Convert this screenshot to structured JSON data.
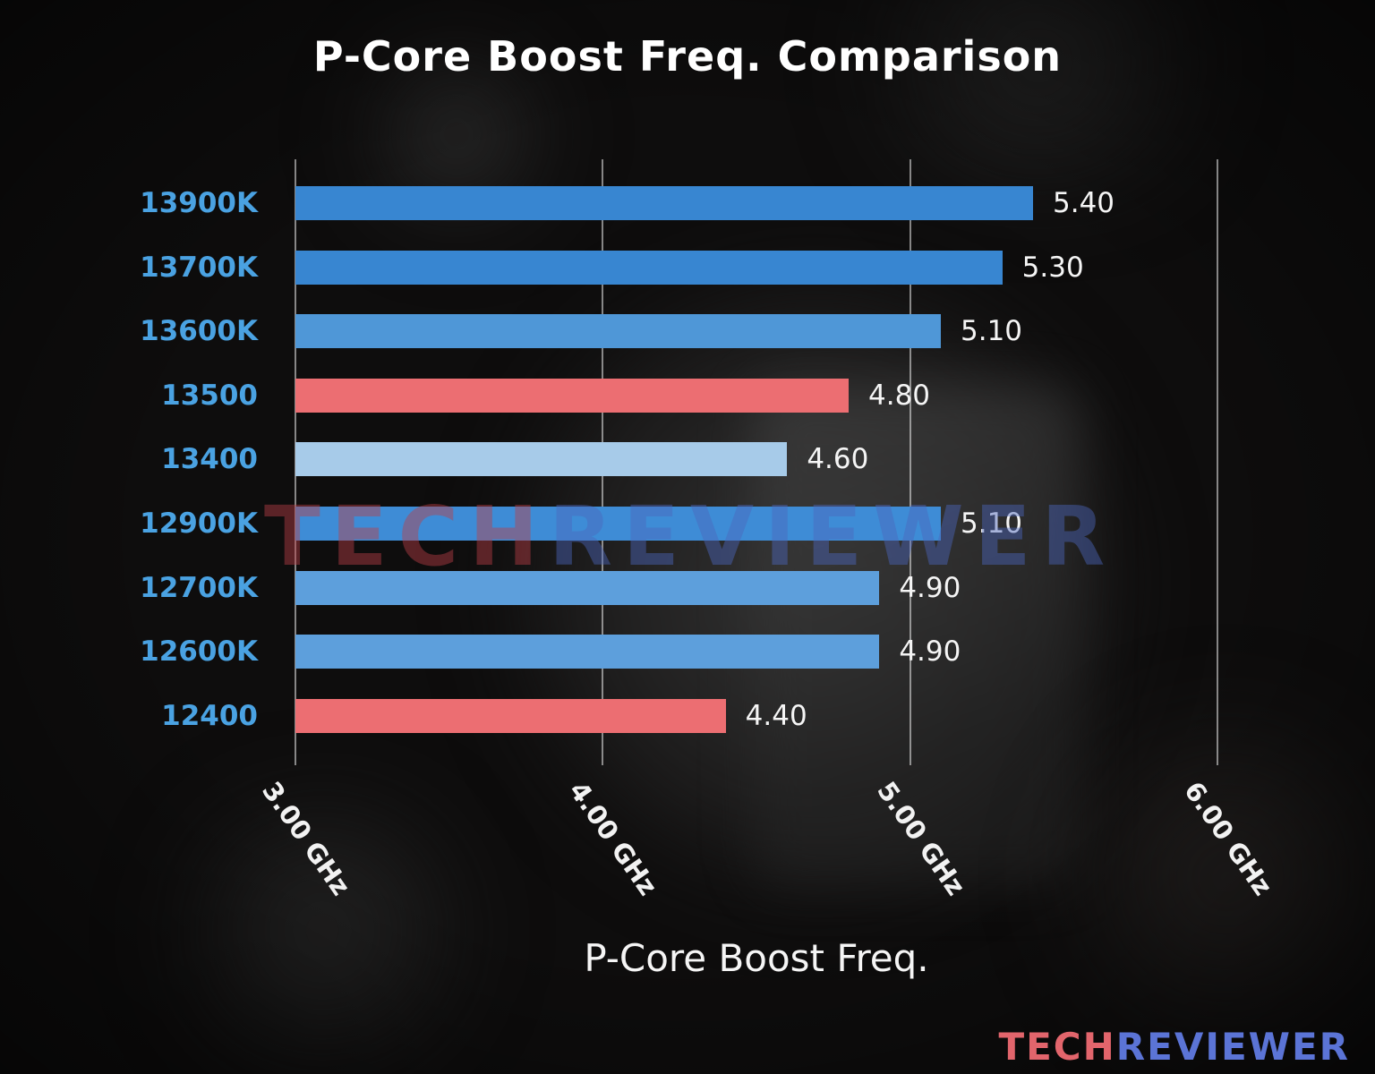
{
  "chart_data": {
    "type": "bar",
    "orientation": "horizontal",
    "title": "P-Core Boost Freq. Comparison",
    "xlabel": "P-Core Boost Freq.",
    "categories": [
      "13900K",
      "13700K",
      "13600K",
      "13500",
      "13400",
      "12900K",
      "12700K",
      "12600K",
      "12400"
    ],
    "values": [
      5.4,
      5.3,
      5.1,
      4.8,
      4.6,
      5.1,
      4.9,
      4.9,
      4.4
    ],
    "value_labels": [
      "5.40",
      "5.30",
      "5.10",
      "4.80",
      "4.60",
      "5.10",
      "4.90",
      "4.90",
      "4.40"
    ],
    "bar_colors": [
      "#3886d1",
      "#3886d1",
      "#4f97d7",
      "#ec6e72",
      "#a7cbe9",
      "#3e8cd6",
      "#5d9fdc",
      "#5d9fdc",
      "#ec6e72"
    ],
    "xlim": [
      3.0,
      6.0
    ],
    "xticks": [
      {
        "value": 3.0,
        "label": "3.00 GHz"
      },
      {
        "value": 4.0,
        "label": "4.00 GHz"
      },
      {
        "value": 5.0,
        "label": "5.00 GHz"
      },
      {
        "value": 6.0,
        "label": "6.00 GHz"
      }
    ],
    "grid": true,
    "category_color": "#4aa2e2",
    "value_label_color": "#f5f5f5",
    "tick_color": "#f2f2f2",
    "background_color": "#0e0d0d"
  },
  "watermark": {
    "tech": "TECH",
    "reviewer": "REVIEWER"
  },
  "branding": {
    "tech": "TECH",
    "reviewer": "REVIEWER",
    "tech_color": "#e2656c",
    "reviewer_color": "#5b74d6"
  }
}
